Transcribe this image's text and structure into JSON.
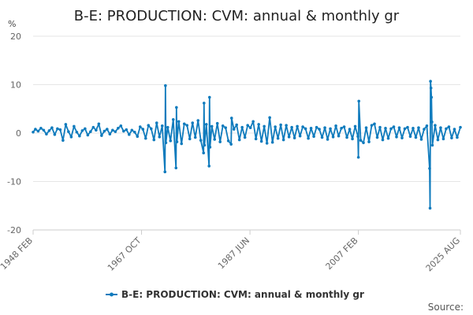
{
  "chart_data": {
    "type": "line",
    "title": "B-E: PRODUCTION: CVM: annual & monthly gr",
    "ylabel": "%",
    "xlabel": "",
    "ylim": [
      -20,
      20
    ],
    "y_ticks": [
      20,
      10,
      0,
      -10,
      -20
    ],
    "x_range": [
      1948.083,
      2025.583
    ],
    "x_ticks": [
      {
        "label": "1948 FEB",
        "x": 1948.083
      },
      {
        "label": "1967 OCT",
        "x": 1967.75
      },
      {
        "label": "1987 JUN",
        "x": 1987.417
      },
      {
        "label": "2007 FEB",
        "x": 2007.083
      },
      {
        "label": "2025 AUG",
        "x": 2025.583
      }
    ],
    "grid": true,
    "legend_position": "bottom-center",
    "series": [
      {
        "name": "B-E: PRODUCTION: CVM: annual & monthly gr",
        "color": "#0f7bbd",
        "x": [
          1948.083,
          1948.5,
          1949.0,
          1949.5,
          1950.0,
          1950.5,
          1951.0,
          1951.5,
          1952.0,
          1952.5,
          1953.0,
          1953.5,
          1954.0,
          1954.5,
          1955.0,
          1955.5,
          1956.0,
          1956.5,
          1957.0,
          1957.5,
          1958.0,
          1958.5,
          1959.0,
          1959.5,
          1960.0,
          1960.5,
          1961.0,
          1961.5,
          1962.0,
          1962.5,
          1963.0,
          1963.5,
          1964.0,
          1964.5,
          1965.0,
          1965.5,
          1966.0,
          1966.5,
          1967.0,
          1967.5,
          1968.0,
          1968.5,
          1969.0,
          1969.5,
          1970.0,
          1970.5,
          1971.0,
          1971.5,
          1972.0,
          1972.083,
          1972.167,
          1972.5,
          1973.0,
          1973.5,
          1974.0,
          1974.083,
          1974.167,
          1974.5,
          1975.0,
          1975.5,
          1976.0,
          1976.5,
          1977.0,
          1977.5,
          1978.0,
          1978.5,
          1979.0,
          1979.083,
          1979.167,
          1979.5,
          1980.0,
          1980.083,
          1980.167,
          1980.5,
          1981.0,
          1981.5,
          1982.0,
          1982.5,
          1983.0,
          1983.5,
          1984.0,
          1984.083,
          1984.5,
          1985.0,
          1985.5,
          1986.0,
          1986.5,
          1987.0,
          1987.5,
          1988.0,
          1988.5,
          1989.0,
          1989.5,
          1990.0,
          1990.5,
          1991.0,
          1991.5,
          1992.0,
          1992.5,
          1993.0,
          1993.5,
          1994.0,
          1994.5,
          1995.0,
          1995.5,
          1996.0,
          1996.5,
          1997.0,
          1997.5,
          1998.0,
          1998.5,
          1999.0,
          1999.5,
          2000.0,
          2000.5,
          2001.0,
          2001.5,
          2002.0,
          2002.5,
          2003.0,
          2003.5,
          2004.0,
          2004.5,
          2005.0,
          2005.5,
          2006.0,
          2006.5,
          2007.0,
          2007.083,
          2007.167,
          2007.5,
          2008.0,
          2008.5,
          2009.0,
          2009.5,
          2010.0,
          2010.5,
          2011.0,
          2011.5,
          2012.0,
          2012.5,
          2013.0,
          2013.5,
          2014.0,
          2014.5,
          2015.0,
          2015.5,
          2016.0,
          2016.5,
          2017.0,
          2017.5,
          2018.0,
          2018.5,
          2019.0,
          2019.5,
          2020.0,
          2020.083,
          2020.167,
          2020.25,
          2020.333,
          2020.417,
          2020.5,
          2021.0,
          2021.5,
          2022.0,
          2022.5,
          2023.0,
          2023.5,
          2024.0,
          2024.5,
          2025.0,
          2025.583
        ],
        "values": [
          0.2,
          0.8,
          0.4,
          1.0,
          0.6,
          -0.2,
          0.5,
          1.1,
          -0.3,
          0.9,
          0.7,
          -1.5,
          1.8,
          0.3,
          -0.8,
          1.4,
          0.2,
          -0.6,
          0.5,
          0.9,
          -0.4,
          0.3,
          1.2,
          0.6,
          1.9,
          -0.5,
          0.4,
          0.8,
          -0.2,
          0.6,
          0.3,
          1.0,
          1.5,
          0.4,
          0.7,
          -0.3,
          0.6,
          0.2,
          -0.7,
          1.3,
          0.8,
          -1.1,
          1.6,
          0.9,
          -1.4,
          2.1,
          -0.8,
          1.5,
          -8.0,
          9.8,
          -2.0,
          1.2,
          -1.6,
          2.8,
          -7.2,
          5.3,
          -1.8,
          2.4,
          -2.2,
          1.9,
          1.6,
          -1.2,
          2.1,
          -0.9,
          2.6,
          -1.5,
          -4.1,
          6.2,
          -2.5,
          1.8,
          -6.8,
          7.4,
          -2.9,
          1.4,
          -1.3,
          2.0,
          -1.8,
          1.5,
          1.1,
          -1.6,
          -2.3,
          3.1,
          0.8,
          1.7,
          -1.4,
          1.2,
          -0.9,
          1.6,
          1.1,
          2.4,
          -1.2,
          1.8,
          -1.7,
          1.4,
          -2.1,
          3.2,
          -1.9,
          1.3,
          -1.1,
          1.7,
          -1.4,
          1.6,
          -0.8,
          1.2,
          -1.0,
          1.4,
          -0.6,
          1.3,
          0.9,
          -1.1,
          1.0,
          -0.7,
          1.2,
          0.8,
          -0.9,
          1.1,
          -1.3,
          0.9,
          -0.8,
          1.5,
          -0.6,
          1.0,
          1.3,
          -0.9,
          0.8,
          -1.2,
          1.4,
          -0.7,
          -5.0,
          6.6,
          -1.5,
          -2.0,
          1.1,
          -1.8,
          1.6,
          1.9,
          -0.9,
          1.2,
          -1.4,
          1.0,
          -1.1,
          0.9,
          1.3,
          -0.8,
          1.1,
          -1.0,
          0.9,
          1.2,
          -0.7,
          1.0,
          -0.9,
          1.1,
          -1.3,
          0.8,
          1.5,
          -7.3,
          -15.5,
          10.7,
          9.3,
          7.4,
          2.3,
          -2.5,
          1.6,
          -1.4,
          1.1,
          -1.2,
          0.9,
          1.3,
          -1.0,
          0.8,
          -0.9,
          1.2
        ]
      }
    ]
  },
  "legend": {
    "label": "B-E: PRODUCTION: CVM: annual & monthly gr"
  },
  "source": {
    "label": "Source:"
  },
  "colors": {
    "series": "#0f7bbd",
    "grid": "#e6e6e6",
    "axis": "#cccccc"
  }
}
